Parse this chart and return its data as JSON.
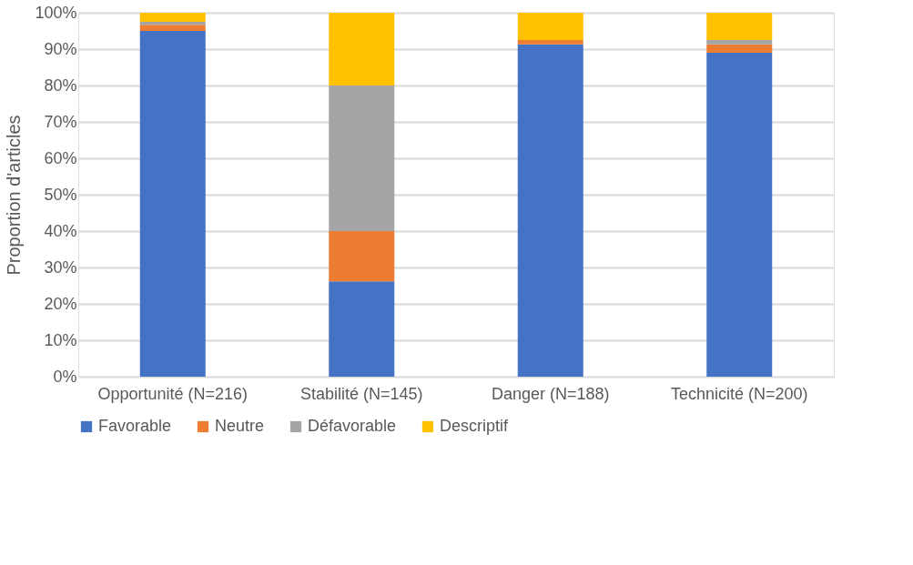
{
  "chart_data": {
    "type": "bar",
    "stacked": true,
    "ylabel": "Proportion d'articles",
    "categories": [
      "Opportunité (N=216)",
      "Stabilité (N=145)",
      "Danger (N=188)",
      "Technicité (N=200)"
    ],
    "series": [
      {
        "name": "Favorable",
        "color": "#4472c4",
        "values": [
          95,
          26.2,
          91.3,
          89
        ]
      },
      {
        "name": "Neutre",
        "color": "#ed7d31",
        "values": [
          1.7,
          13.8,
          1.2,
          2.3
        ]
      },
      {
        "name": "Défavorable",
        "color": "#a5a5a5",
        "values": [
          0.8,
          40,
          0,
          1.2
        ]
      },
      {
        "name": "Descriptif",
        "color": "#ffc000",
        "values": [
          2.5,
          20,
          7.5,
          7.5
        ]
      }
    ],
    "ylim": [
      0,
      100
    ],
    "yticks": [
      {
        "value": 0,
        "label": "0%"
      },
      {
        "value": 10,
        "label": "10%"
      },
      {
        "value": 20,
        "label": "20%"
      },
      {
        "value": 30,
        "label": "30%"
      },
      {
        "value": 40,
        "label": "40%"
      },
      {
        "value": 50,
        "label": "50%"
      },
      {
        "value": 60,
        "label": "60%"
      },
      {
        "value": 70,
        "label": "70%"
      },
      {
        "value": 80,
        "label": "80%"
      },
      {
        "value": 90,
        "label": "90%"
      },
      {
        "value": 100,
        "label": "100%"
      }
    ],
    "grid": "y",
    "legend": "bottom"
  }
}
